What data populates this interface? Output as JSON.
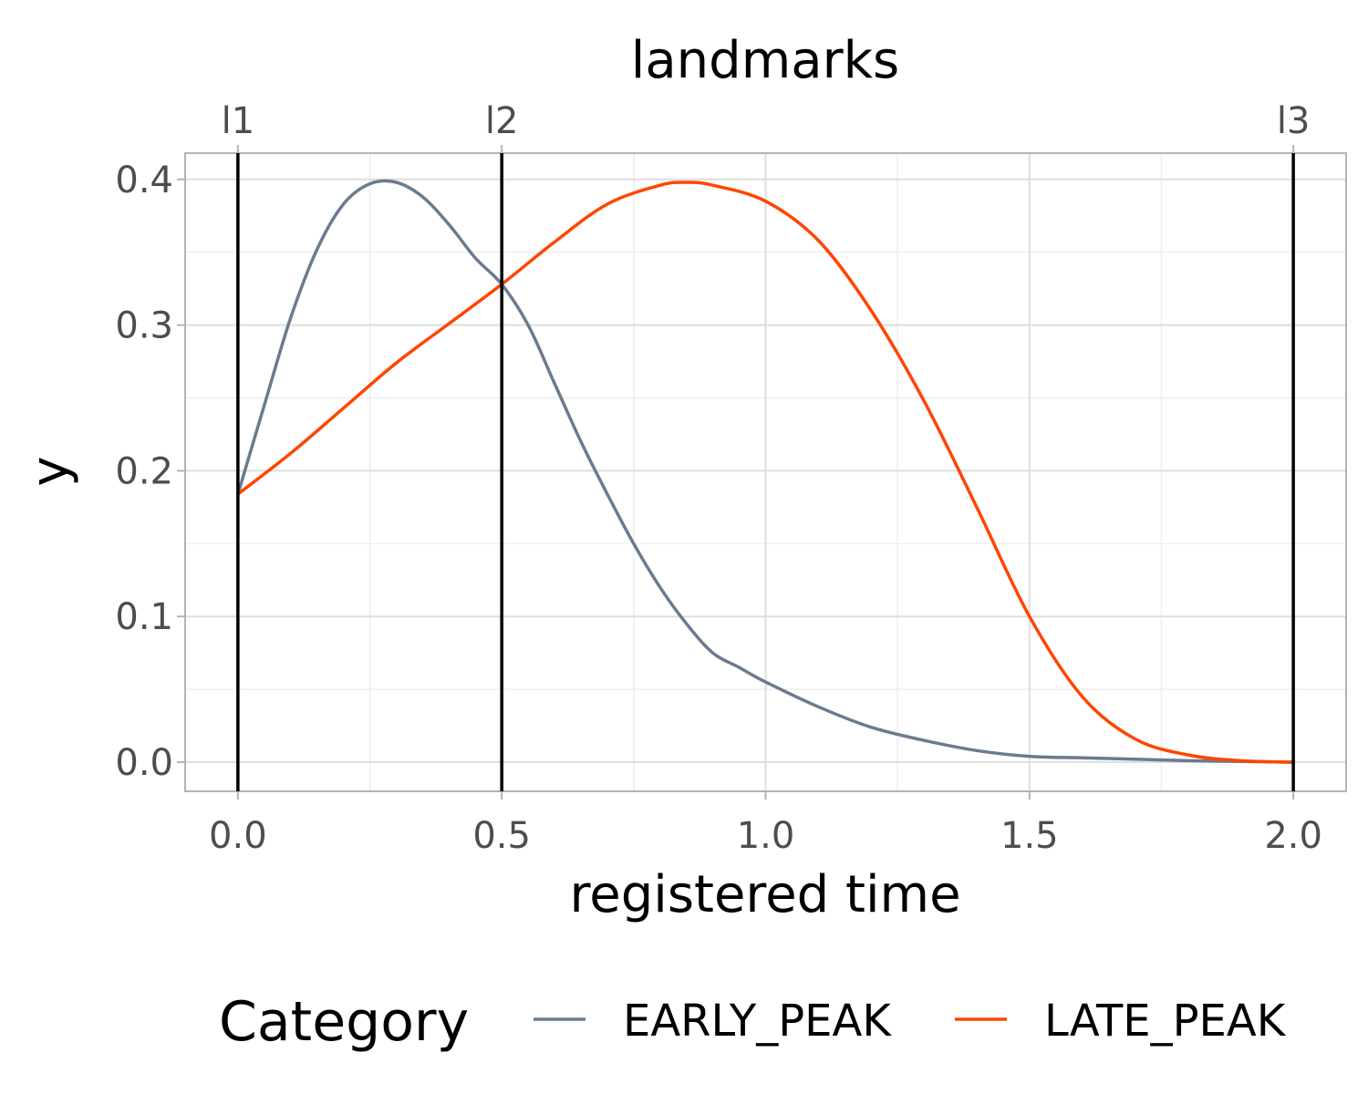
{
  "chart_data": {
    "type": "line",
    "title": "landmarks",
    "xlabel": "registered time",
    "ylabel": "y",
    "xlim": [
      -0.1,
      2.1
    ],
    "ylim": [
      -0.02,
      0.418
    ],
    "x_ticks": [
      0.0,
      0.5,
      1.0,
      1.5,
      2.0
    ],
    "x_tick_labels": [
      "0.0",
      "0.5",
      "1.0",
      "1.5",
      "2.0"
    ],
    "y_ticks": [
      0.0,
      0.1,
      0.2,
      0.3,
      0.4
    ],
    "y_tick_labels": [
      "0.0",
      "0.1",
      "0.2",
      "0.3",
      "0.4"
    ],
    "grid": true,
    "landmarks": [
      {
        "label": "l1",
        "x": 0.0
      },
      {
        "label": "l2",
        "x": 0.5
      },
      {
        "label": "l3",
        "x": 2.0
      }
    ],
    "legend": {
      "title": "Category",
      "position": "bottom"
    },
    "series": [
      {
        "name": "EARLY_PEAK",
        "color": "#6b7b8f",
        "x": [
          0.0,
          0.05,
          0.1,
          0.15,
          0.2,
          0.25,
          0.3,
          0.35,
          0.4,
          0.45,
          0.5,
          0.55,
          0.6,
          0.65,
          0.7,
          0.75,
          0.8,
          0.85,
          0.9,
          0.95,
          1.0,
          1.1,
          1.2,
          1.3,
          1.4,
          1.5,
          1.6,
          1.7,
          1.8,
          1.9,
          2.0
        ],
        "y": [
          0.184,
          0.245,
          0.305,
          0.352,
          0.383,
          0.397,
          0.398,
          0.388,
          0.369,
          0.346,
          0.328,
          0.3,
          0.26,
          0.22,
          0.184,
          0.15,
          0.12,
          0.095,
          0.075,
          0.065,
          0.055,
          0.038,
          0.024,
          0.015,
          0.008,
          0.004,
          0.003,
          0.002,
          0.001,
          0.0005,
          0.0
        ]
      },
      {
        "name": "LATE_PEAK",
        "color": "#ff4500",
        "x": [
          0.0,
          0.1,
          0.2,
          0.3,
          0.4,
          0.5,
          0.6,
          0.7,
          0.8,
          0.85,
          0.9,
          1.0,
          1.1,
          1.2,
          1.3,
          1.4,
          1.5,
          1.6,
          1.7,
          1.8,
          1.9,
          2.0
        ],
        "y": [
          0.184,
          0.212,
          0.243,
          0.274,
          0.301,
          0.328,
          0.357,
          0.383,
          0.396,
          0.398,
          0.396,
          0.385,
          0.358,
          0.31,
          0.248,
          0.175,
          0.1,
          0.045,
          0.016,
          0.005,
          0.001,
          0.0
        ]
      }
    ]
  }
}
